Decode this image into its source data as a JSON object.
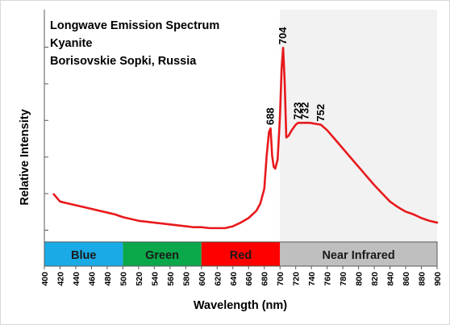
{
  "chart_data": {
    "type": "line",
    "title_lines": [
      "Longwave Emission Spectrum",
      "Kyanite",
      "Borisovskie Sopki, Russia"
    ],
    "xlabel": "Wavelength (nm)",
    "ylabel": "Relative Intensity",
    "xlim": [
      400,
      900
    ],
    "ylim": [
      0,
      100
    ],
    "x_ticks": [
      400,
      420,
      440,
      460,
      480,
      500,
      520,
      540,
      560,
      580,
      600,
      620,
      640,
      660,
      680,
      700,
      720,
      740,
      760,
      780,
      800,
      820,
      840,
      860,
      880,
      900
    ],
    "x_tick_labels": [
      "400",
      "420",
      "440",
      "460",
      "480",
      "500",
      "520",
      "540",
      "560",
      "580",
      "600",
      "620",
      "640",
      "660",
      "680",
      "700",
      "720",
      "740",
      "760",
      "780",
      "800",
      "820",
      "840",
      "860",
      "880",
      "900"
    ],
    "y_ticks": [
      0,
      20,
      40,
      60,
      80,
      100
    ],
    "y_tick_labels_visible": false,
    "grid": false,
    "line_color": "#e8191c",
    "bands": [
      {
        "label": "Blue",
        "from": 400,
        "to": 500,
        "color": "#1aaae6"
      },
      {
        "label": "Green",
        "from": 500,
        "to": 600,
        "color": "#0aa84a"
      },
      {
        "label": "Red",
        "from": 600,
        "to": 700,
        "color": "#ff0000"
      },
      {
        "label": "Near Infrared",
        "from": 700,
        "to": 900,
        "color": "#bfbfbf"
      }
    ],
    "shaded_region": {
      "from": 700,
      "to": 900,
      "color": "#f2f2f2"
    },
    "peaks": [
      {
        "x": 688,
        "y": 55,
        "label": "688"
      },
      {
        "x": 704,
        "y": 99,
        "label": "704"
      },
      {
        "x": 723,
        "y": 58,
        "label": "723"
      },
      {
        "x": 732,
        "y": 58,
        "label": "732"
      },
      {
        "x": 752,
        "y": 57,
        "label": "752"
      }
    ],
    "series": [
      {
        "x": [
          412,
          420,
          430,
          440,
          450,
          460,
          470,
          480,
          490,
          500,
          510,
          520,
          530,
          540,
          550,
          560,
          570,
          580,
          590,
          600,
          610,
          620,
          630,
          640,
          650,
          660,
          670,
          675,
          680,
          683,
          686,
          688,
          690,
          692,
          694,
          697,
          700,
          702,
          704,
          706,
          708,
          711,
          715,
          720,
          723,
          727,
          732,
          738,
          745,
          752,
          760,
          770,
          780,
          790,
          800,
          810,
          820,
          830,
          840,
          850,
          860,
          870,
          880,
          890,
          900
        ],
        "y": [
          19,
          15,
          14,
          13,
          12,
          11,
          10,
          9,
          8,
          6.5,
          5.5,
          4.5,
          4,
          3.5,
          3,
          2.5,
          2,
          1.5,
          1,
          1,
          0.5,
          0.5,
          0.5,
          1.5,
          3.5,
          6,
          10,
          14,
          22,
          40,
          53,
          55,
          40,
          34,
          33,
          38,
          62,
          87,
          99,
          80,
          50,
          51,
          54,
          57,
          58,
          58,
          58,
          58,
          57.5,
          57,
          54,
          49,
          44,
          39,
          34,
          29,
          24,
          19.5,
          15,
          12,
          9.5,
          8,
          6,
          4.5,
          3.5
        ]
      }
    ]
  }
}
